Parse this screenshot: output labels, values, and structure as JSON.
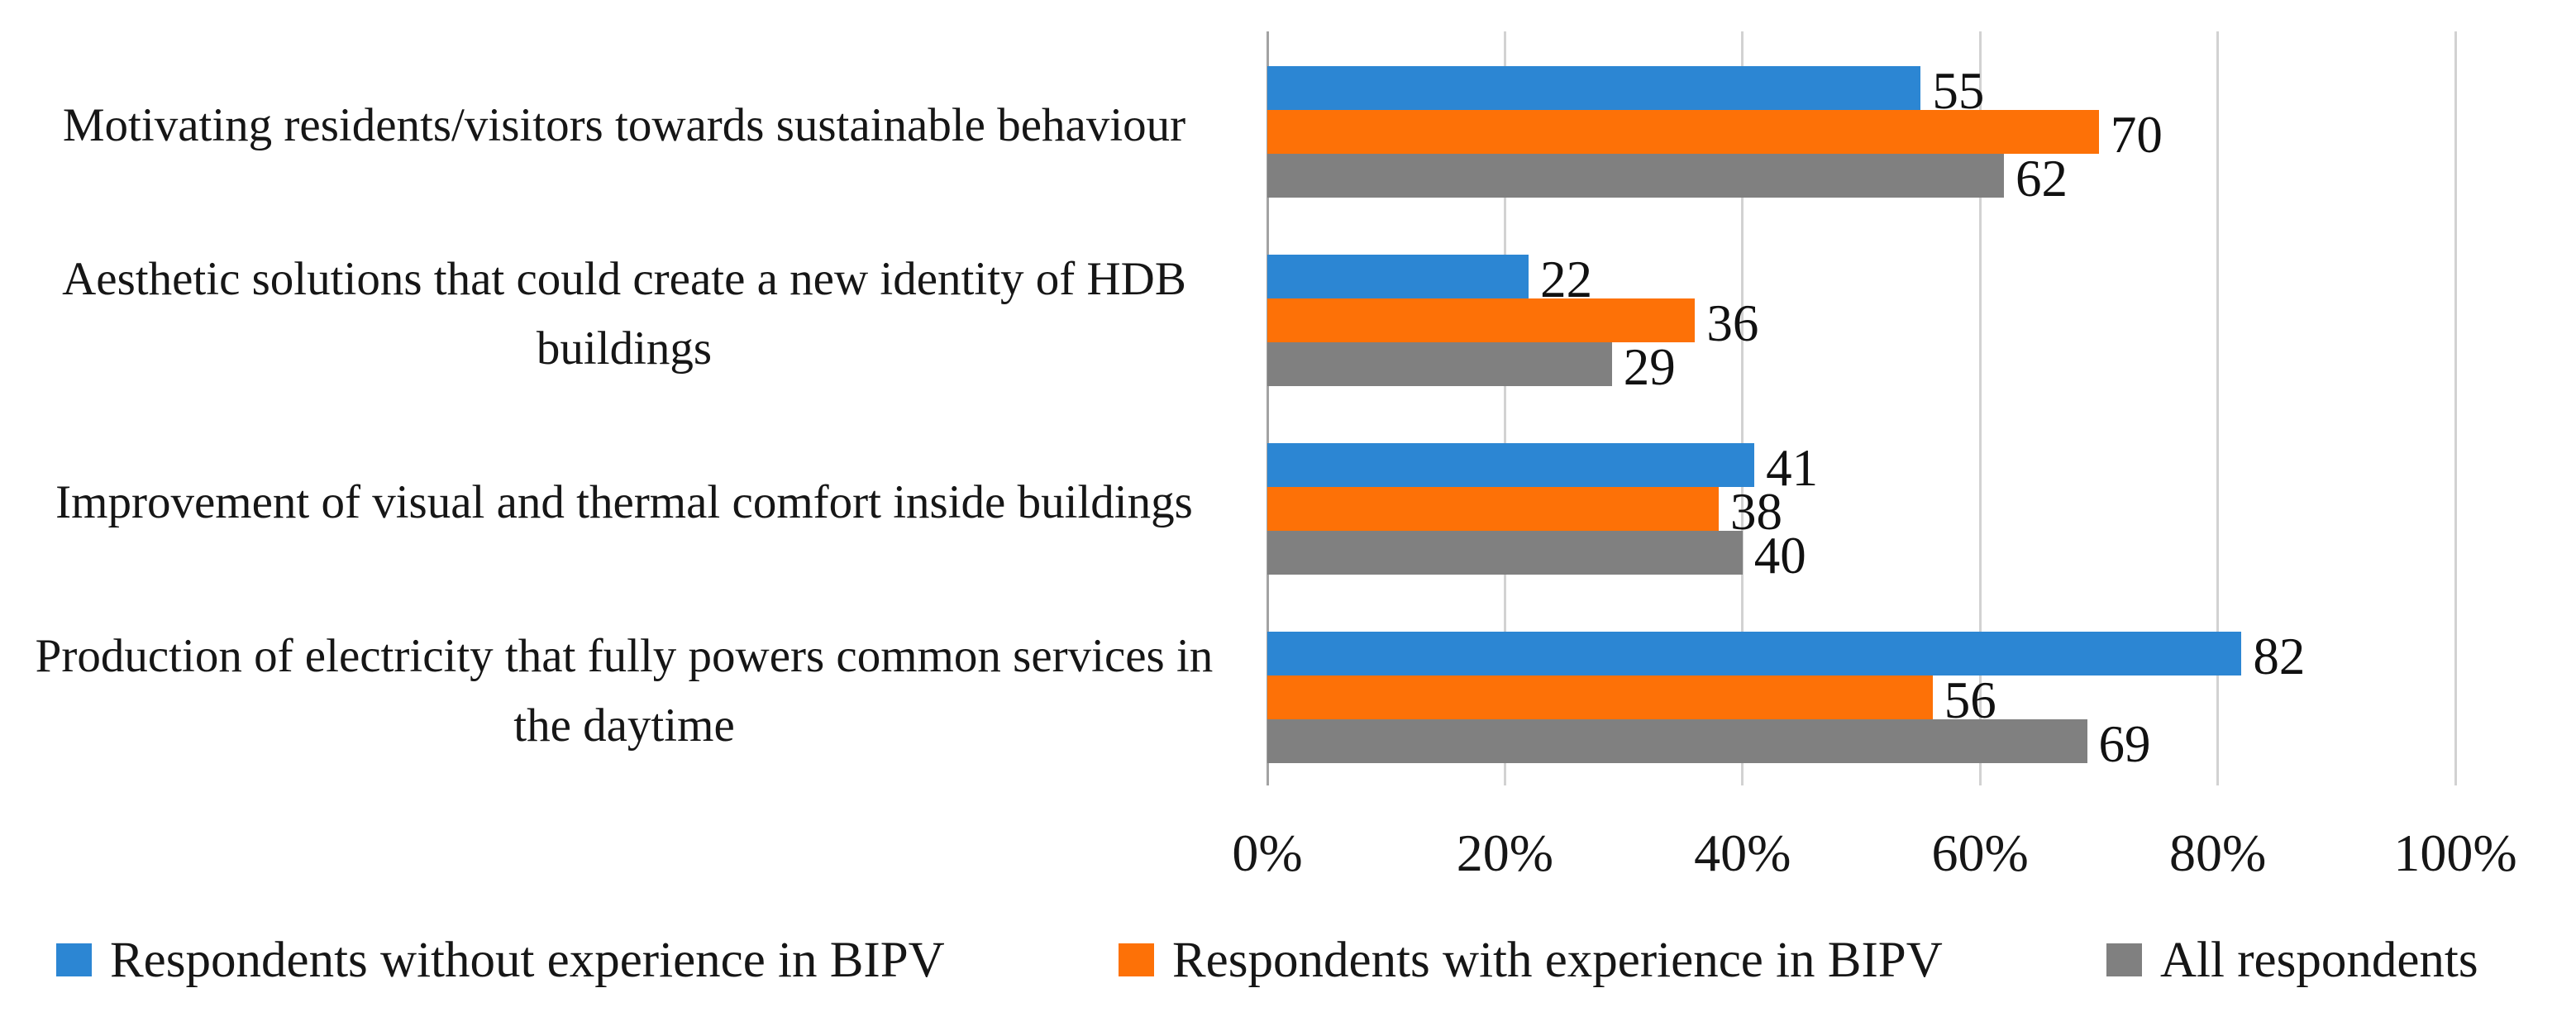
{
  "chart_data": {
    "type": "bar",
    "orientation": "horizontal",
    "title": "",
    "categories": [
      "Motivating residents/visitors towards sustainable behaviour",
      "Aesthetic solutions that could create a new identity of HDB buildings",
      "Improvement of visual and thermal comfort inside buildings",
      "Production of electricity that fully powers common services in the daytime"
    ],
    "series": [
      {
        "name": "Respondents without experience in BIPV",
        "color": "#2C86D3",
        "values": [
          55,
          22,
          41,
          82
        ]
      },
      {
        "name": "Respondents with experience in BIPV",
        "color": "#FD7107",
        "values": [
          70,
          36,
          38,
          56
        ]
      },
      {
        "name": "All respondents",
        "color": "#808080",
        "values": [
          62,
          29,
          40,
          69
        ]
      }
    ],
    "x_axis": {
      "min": 0,
      "max": 100,
      "tick_step": 20,
      "tick_labels": [
        "0%",
        "20%",
        "40%",
        "60%",
        "80%",
        "100%"
      ]
    },
    "value_labels_shown": true,
    "grid": "vertical-only",
    "legend_position": "bottom"
  },
  "colors": {
    "background": "#FFFFFF",
    "gridline": "#D2D2D2",
    "axis_line": "#A3A3A3",
    "text": "#161616"
  }
}
